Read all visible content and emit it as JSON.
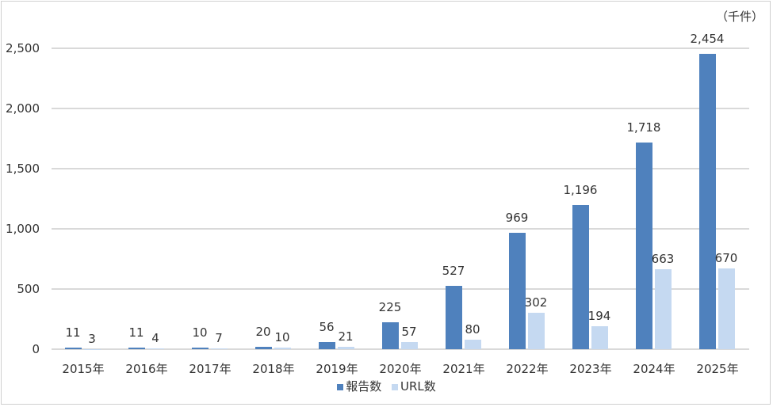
{
  "chart_data": {
    "type": "bar",
    "title": "",
    "unit_label": "（千件）",
    "xlabel": "",
    "ylabel": "",
    "ylim": [
      0,
      2500
    ],
    "yticks": [
      "0",
      "500",
      "1,000",
      "1,500",
      "2,000",
      "2,500"
    ],
    "ytick_values": [
      0,
      500,
      1000,
      1500,
      2000,
      2500
    ],
    "grid": true,
    "legend_position": "bottom",
    "categories": [
      "2015年",
      "2016年",
      "2017年",
      "2018年",
      "2019年",
      "2020年",
      "2021年",
      "2022年",
      "2023年",
      "2024年",
      "2025年"
    ],
    "series": [
      {
        "name": "報告数",
        "color": "#4f81bd",
        "values": [
          11,
          11,
          10,
          20,
          56,
          225,
          527,
          969,
          1196,
          1718,
          2454
        ],
        "labels": [
          "11",
          "11",
          "10",
          "20",
          "56",
          "225",
          "527",
          "969",
          "1,196",
          "1,718",
          "2,454"
        ]
      },
      {
        "name": "URL数",
        "color": "#c5d9f1",
        "values": [
          3,
          4,
          7,
          10,
          21,
          57,
          80,
          302,
          194,
          663,
          670
        ],
        "labels": [
          "3",
          "4",
          "7",
          "10",
          "21",
          "57",
          "80",
          "302",
          "194",
          "663",
          "670"
        ]
      }
    ]
  }
}
